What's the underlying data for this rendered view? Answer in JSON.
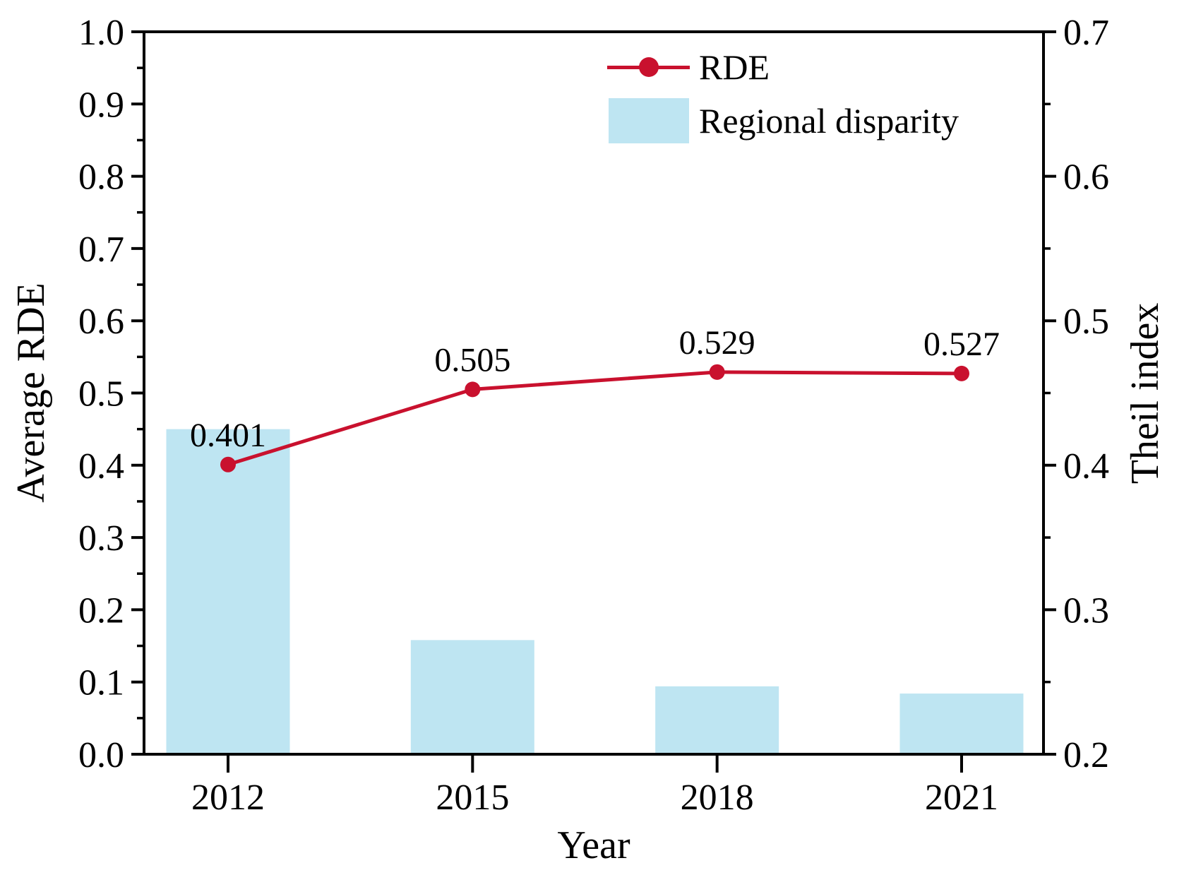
{
  "figure": {
    "background": "#ffffff",
    "text_color": "#000000",
    "axis_color": "#000000"
  },
  "legend": {
    "position": "top-center-inside",
    "items": [
      {
        "label": "RDE",
        "type": "line",
        "color": "#C9112E"
      },
      {
        "label": "Regional disparity",
        "type": "bar",
        "color": "#BEE5F2"
      }
    ]
  },
  "chart_data": {
    "type": "bar+line",
    "title": "",
    "categories": [
      "2012",
      "2015",
      "2018",
      "2021"
    ],
    "x_axis": {
      "label": "Year"
    },
    "left_axis": {
      "label": "Average RDE",
      "min": 0.0,
      "max": 1.0,
      "tick_step": 0.1,
      "minor_tick_step": 0.05,
      "tick_labels": [
        "0.0",
        "0.1",
        "0.2",
        "0.3",
        "0.4",
        "0.5",
        "0.6",
        "0.7",
        "0.8",
        "0.9",
        "1.0"
      ]
    },
    "right_axis": {
      "label": "Theil index",
      "min": 0.2,
      "max": 0.7,
      "tick_step": 0.1,
      "minor_tick_step": 0.05,
      "tick_labels": [
        "0.2",
        "0.3",
        "0.4",
        "0.5",
        "0.6",
        "0.7"
      ]
    },
    "series": [
      {
        "name": "RDE",
        "type": "line",
        "axis": "left",
        "color": "#C9112E",
        "marker": "circle",
        "values": [
          0.401,
          0.505,
          0.529,
          0.527
        ],
        "point_labels": [
          "0.401",
          "0.505",
          "0.529",
          "0.527"
        ]
      },
      {
        "name": "Regional disparity",
        "type": "bar",
        "axis": "right",
        "color": "#BEE5F2",
        "bar_baseline": 0.2,
        "values": [
          0.425,
          0.279,
          0.247,
          0.242
        ]
      }
    ],
    "grid": false,
    "plot_border": "full-box"
  }
}
